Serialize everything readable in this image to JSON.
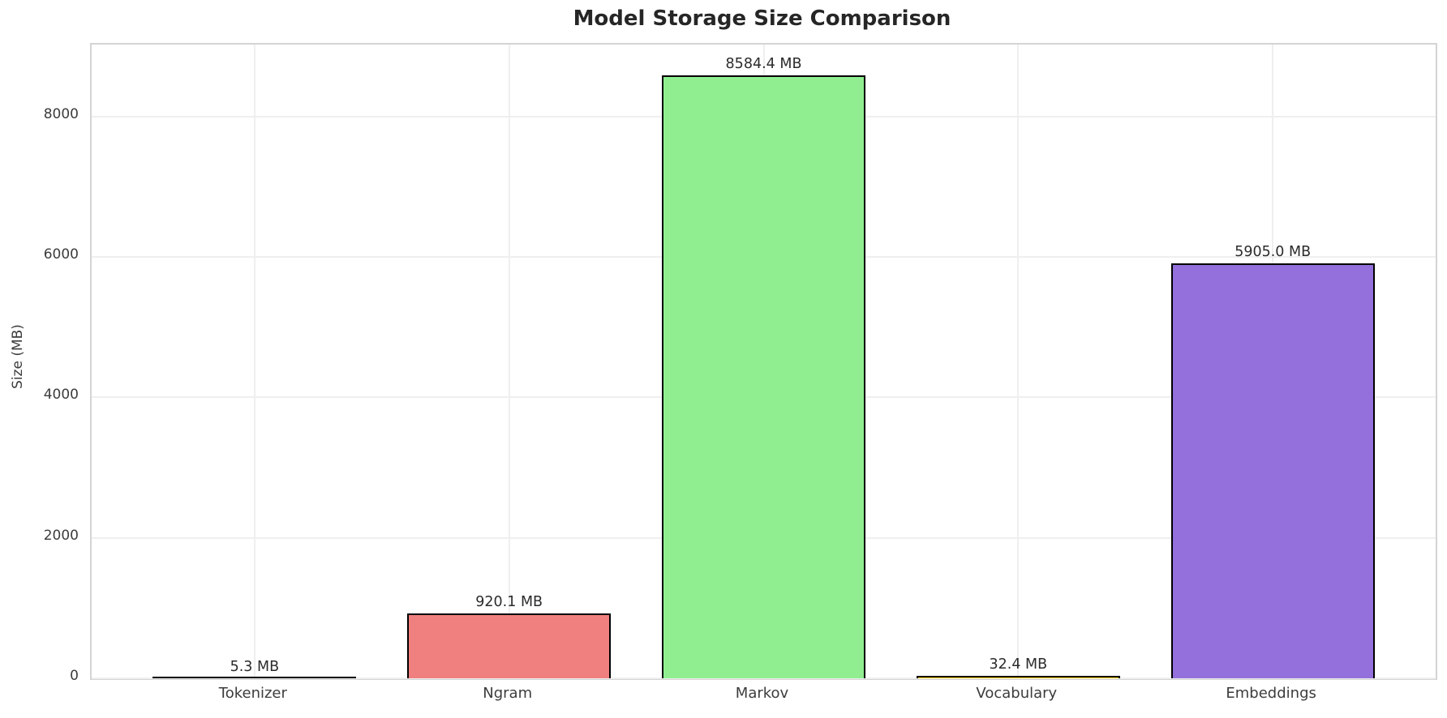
{
  "chart_data": {
    "type": "bar",
    "title": "Model Storage Size Comparison",
    "xlabel": "",
    "ylabel": "Size (MB)",
    "categories": [
      "Tokenizer",
      "Ngram",
      "Markov",
      "Vocabulary",
      "Embeddings"
    ],
    "values": [
      5.3,
      920.1,
      8584.4,
      32.4,
      5905.0
    ],
    "value_labels": [
      "5.3 MB",
      "920.1 MB",
      "8584.4 MB",
      "32.4 MB",
      "5905.0 MB"
    ],
    "unit": "MB",
    "bar_colors": [
      "#87ceeb",
      "#f08080",
      "#90ee90",
      "#ffd700",
      "#9370db"
    ],
    "bar_edge_color": "#000000",
    "yticks": [
      0,
      2000,
      4000,
      6000,
      8000
    ],
    "ylim": [
      0,
      9027
    ],
    "grid": true,
    "grid_color": "#efefef",
    "spine_color": "#d4d4d4",
    "text_color": "#2b2b2b",
    "legend_position": "none",
    "background_color": "#ffffff"
  }
}
